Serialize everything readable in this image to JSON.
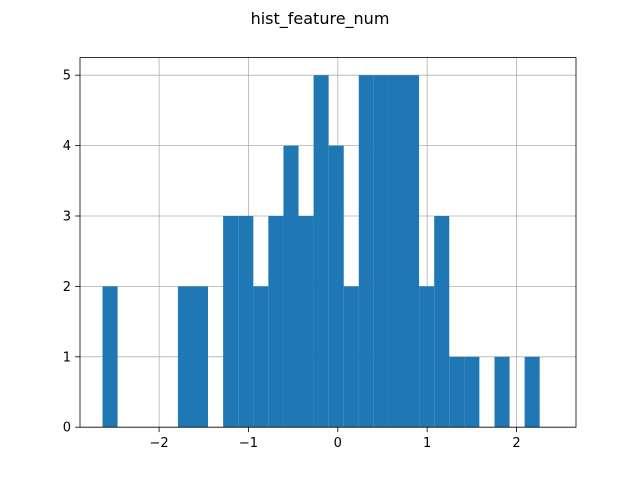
{
  "chart_data": {
    "type": "bar",
    "title": "hist_feature_num",
    "xlabel": "",
    "ylabel": "",
    "grid": true,
    "bar_color": "#1f77b4",
    "xlim": [
      -2.885,
      2.666
    ],
    "ylim": [
      0,
      5.25
    ],
    "xticks": [
      -2,
      -1,
      0,
      1,
      2
    ],
    "xtick_labels": [
      "−2",
      "−1",
      "0",
      "1",
      "2"
    ],
    "yticks": [
      0,
      1,
      2,
      3,
      4,
      5
    ],
    "ytick_labels": [
      "0",
      "1",
      "2",
      "3",
      "4",
      "5"
    ],
    "bin_width": 0.1687,
    "bin_starts": [
      -2.633,
      -2.464,
      -2.295,
      -2.127,
      -1.958,
      -1.789,
      -1.621,
      -1.452,
      -1.283,
      -1.114,
      -0.946,
      -0.777,
      -0.608,
      -0.44,
      -0.271,
      -0.102,
      0.067,
      0.235,
      0.404,
      0.573,
      0.741,
      0.91,
      1.079,
      1.248,
      1.416,
      1.585,
      1.754,
      1.922,
      2.091,
      2.26
    ],
    "counts": [
      2,
      0,
      0,
      0,
      0,
      2,
      2,
      0,
      3,
      3,
      2,
      3,
      4,
      3,
      5,
      4,
      2,
      5,
      5,
      5,
      5,
      2,
      3,
      1,
      1,
      0,
      1,
      0,
      1,
      0
    ]
  }
}
